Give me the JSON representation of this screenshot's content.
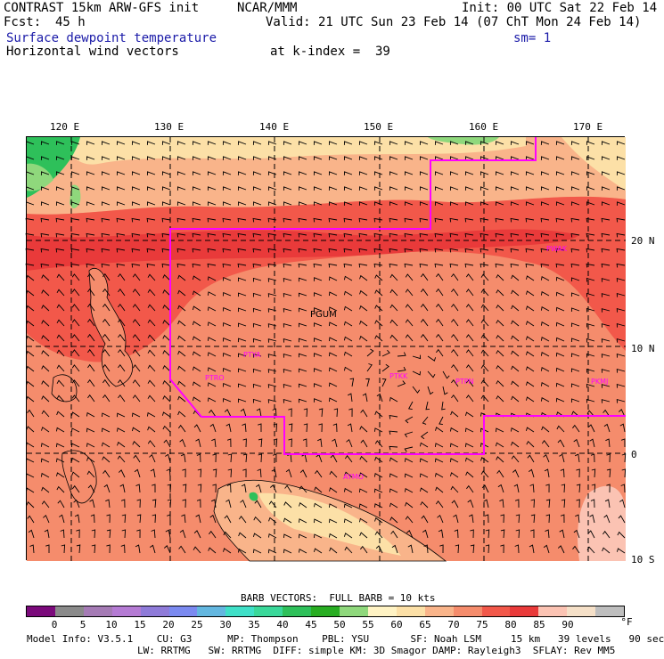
{
  "header": {
    "model": "CONTRAST 15km ARW-GFS init",
    "org": "NCAR/MMM",
    "init": "Init: 00 UTC Sat 22 Feb 14",
    "fcst_label": "Fcst:",
    "fcst_value": "45 h",
    "valid": "Valid: 21 UTC Sun 23 Feb 14 (07 ChT Mon 24 Feb 14)",
    "field1": "Surface dewpoint temperature",
    "smoothing": "sm= 1",
    "field2": "Horizontal wind vectors",
    "level": "at k-index =  39"
  },
  "axes": {
    "lon_ticks": [
      "120 E",
      "130 E",
      "140 E",
      "150 E",
      "160 E",
      "170 E"
    ],
    "lat_ticks": [
      "20 N",
      "10 N",
      "0",
      "10 S"
    ]
  },
  "stations": [
    "PGUM",
    "PTYA",
    "PTRO",
    "PTKK",
    "PTPN",
    "PKMJ",
    "PWAK",
    "AYMO"
  ],
  "legend": {
    "barb_text": "BARB VECTORS:  FULL BARB = 10 kts",
    "unit": "°F",
    "levels": [
      "0",
      "5",
      "10",
      "15",
      "20",
      "25",
      "30",
      "35",
      "40",
      "45",
      "50",
      "55",
      "60",
      "65",
      "70",
      "75",
      "80",
      "85",
      "90"
    ],
    "colors": [
      "#7b0a7b",
      "#8a8a8a",
      "#a57bb5",
      "#b57bd4",
      "#8f7bd9",
      "#7b8af0",
      "#63b7e0",
      "#3fe0c8",
      "#3ad89a",
      "#2ec05a",
      "#28ad22",
      "#8fd87c",
      "#fff3c4",
      "#fce0a7",
      "#f9b48a",
      "#f58c6c",
      "#f2584a",
      "#e93a3a",
      "#fbc3b3",
      "#f5e0c8",
      "#bebebe"
    ]
  },
  "footer": {
    "line1": "Model Info: V3.5.1    CU: G3      MP: Thompson    PBL: YSU       SF: Noah LSM     15 km   39 levels   90 sec",
    "line2": "LW: RRTMG   SW: RRTMG  DIFF: simple KM: 3D Smagor DAMP: Rayleigh3  SFLAY: Rev MM5"
  }
}
